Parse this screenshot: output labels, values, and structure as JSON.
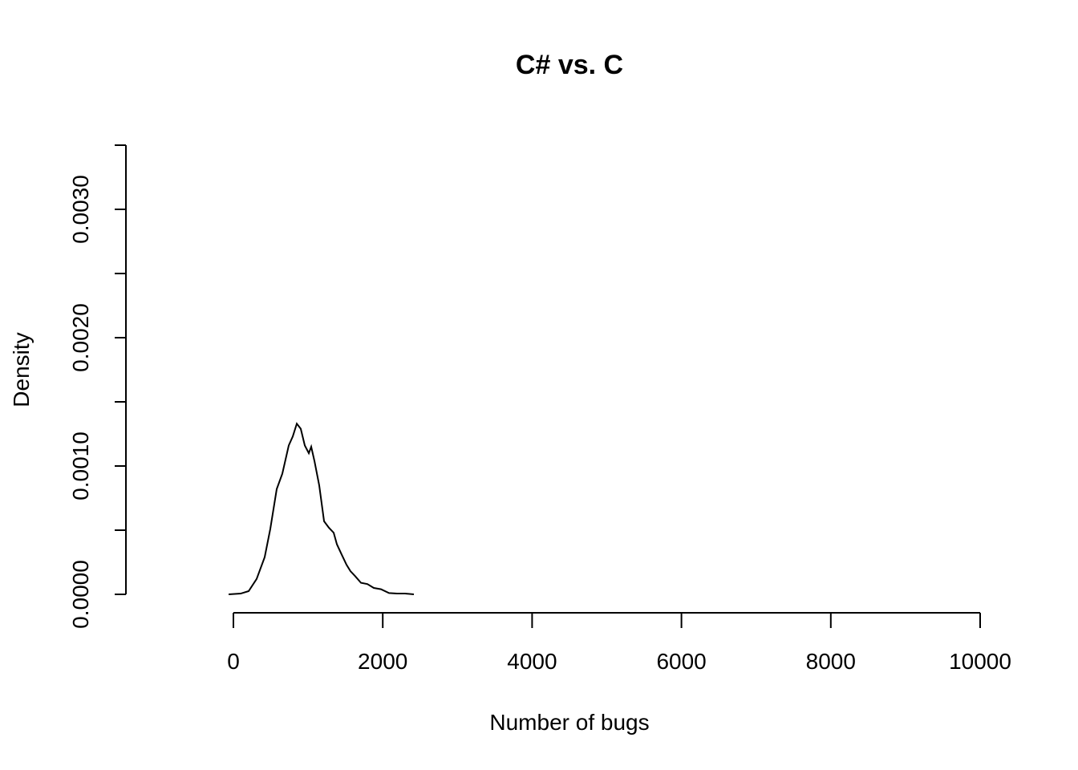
{
  "chart_data": {
    "type": "line",
    "title": "C# vs. C",
    "xlabel": "Number of bugs",
    "ylabel": "Density",
    "x": [
      -64,
      97,
      204,
      311,
      419,
      494,
      580,
      655,
      741,
      795,
      849,
      902,
      956,
      1010,
      1042,
      1085,
      1149,
      1214,
      1278,
      1343,
      1386,
      1450,
      1515,
      1568,
      1633,
      1708,
      1794,
      1880,
      1976,
      2084,
      2191,
      2299,
      2417
    ],
    "series": [
      {
        "color": "#000000",
        "values": [
          0,
          6e-06,
          2.5e-05,
          0.00012,
          0.00029,
          0.00051,
          0.00082,
          0.00094,
          0.00116,
          0.00123,
          0.00133,
          0.00129,
          0.00116,
          0.0011,
          0.00115,
          0.00104,
          0.00085,
          0.00057,
          0.00052,
          0.00048,
          0.00039,
          0.00031,
          0.00023,
          0.00018,
          0.00014,
          9e-05,
          8e-05,
          5e-05,
          4e-05,
          1e-05,
          6e-06,
          6e-06,
          0
        ]
      }
    ],
    "xlim": [
      0,
      10000
    ],
    "xticks": [
      0,
      2000,
      4000,
      6000,
      8000,
      10000
    ],
    "ylim": [
      0,
      0.0035
    ],
    "yticks": [
      {
        "value": 0,
        "label": "0.0000"
      },
      {
        "value": 0.0005,
        "label": null
      },
      {
        "value": 0.001,
        "label": "0.0010"
      },
      {
        "value": 0.0015,
        "label": null
      },
      {
        "value": 0.002,
        "label": "0.0020"
      },
      {
        "value": 0.0025,
        "label": null
      },
      {
        "value": 0.003,
        "label": "0.0030"
      },
      {
        "value": 0.0035,
        "label": null
      }
    ],
    "grid": false
  }
}
